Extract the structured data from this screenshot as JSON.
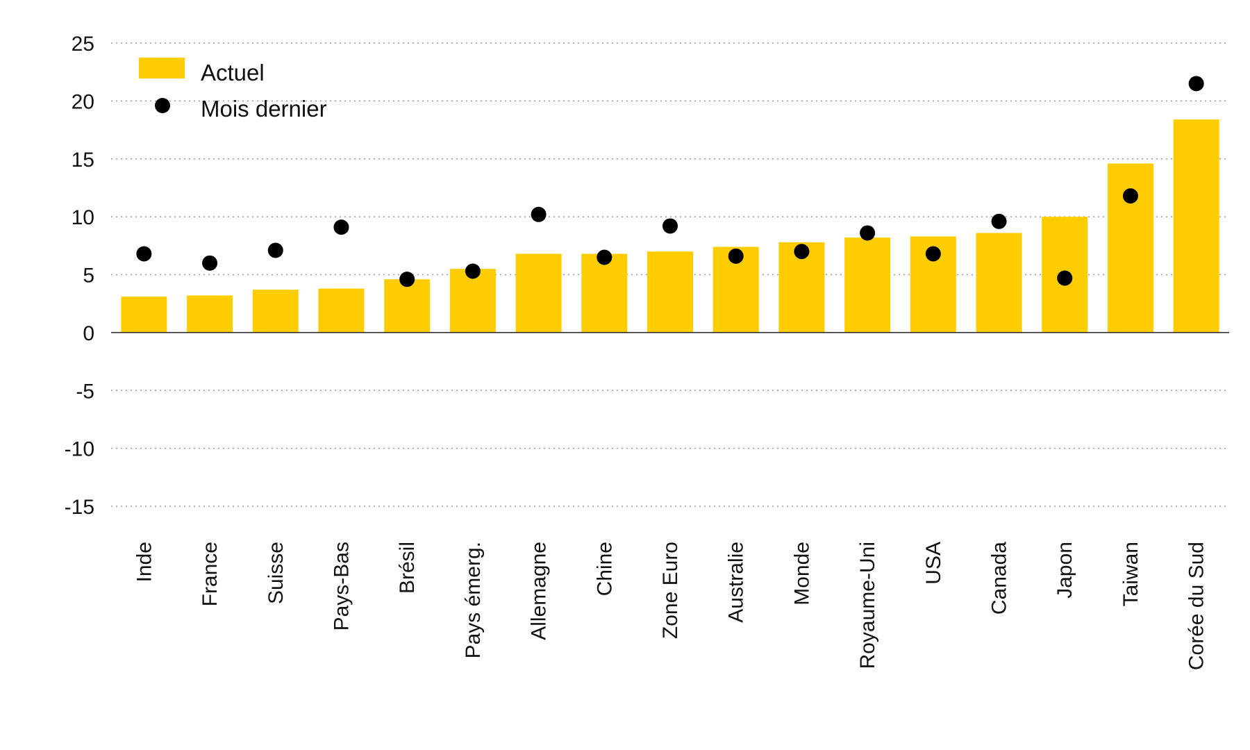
{
  "chart_data": {
    "type": "bar",
    "title": "",
    "xlabel": "",
    "ylabel": "",
    "ylim": [
      -15,
      25
    ],
    "yticks": [
      25,
      20,
      15,
      10,
      5,
      0,
      -5,
      -10,
      -15
    ],
    "grid": true,
    "legend_position": "top-left",
    "categories": [
      "Inde",
      "France",
      "Suisse",
      "Pays-Bas",
      "Brésil",
      "Pays émerg.",
      "Allemagne",
      "Chine",
      "Zone Euro",
      "Australie",
      "Monde",
      "Royaume-Uni",
      "USA",
      "Canada",
      "Japon",
      "Taiwan",
      "Corée du Sud"
    ],
    "series": [
      {
        "name": "Actuel",
        "kind": "bar",
        "color": "#FFCC00",
        "values": [
          3.1,
          3.2,
          3.7,
          3.8,
          4.6,
          5.5,
          6.8,
          6.8,
          7.0,
          7.4,
          7.8,
          8.2,
          8.3,
          8.6,
          10.0,
          14.6,
          18.4
        ]
      },
      {
        "name": "Mois dernier",
        "kind": "dot",
        "color": "#000000",
        "values": [
          6.8,
          6.0,
          7.1,
          9.1,
          4.6,
          5.3,
          10.2,
          6.5,
          9.2,
          6.6,
          7.0,
          8.6,
          6.8,
          9.6,
          4.7,
          11.8,
          21.5
        ]
      }
    ]
  }
}
